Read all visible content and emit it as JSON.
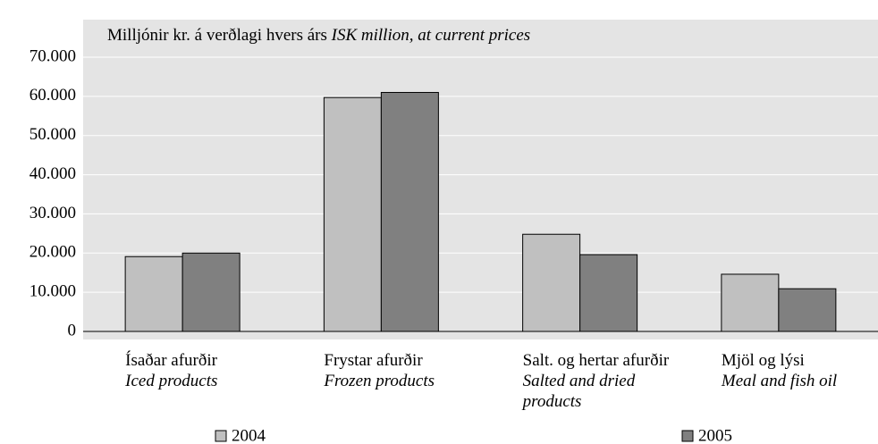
{
  "chart_data": {
    "type": "bar",
    "title": "Milljónir kr. á verðlagi hvers árs",
    "subtitle": "ISK million, at current prices",
    "categories": [
      "Ísaðar afurðir",
      "Frystar afurðir",
      "Salt. og hertar afurðir",
      "Mjöl og lýsi"
    ],
    "categories_en": [
      "Iced products",
      "Frozen products",
      "Salted and dried products",
      "Meal and fish oil"
    ],
    "series": [
      {
        "name": "2004",
        "color": "#c0c0c0",
        "values": [
          19100,
          59700,
          24800,
          14600
        ]
      },
      {
        "name": "2005",
        "color": "#808080",
        "values": [
          20000,
          61000,
          19600,
          10900
        ]
      }
    ],
    "ylim": [
      0,
      70000
    ],
    "yticks": [
      0,
      {
        "value": 10000,
        "label": "10.000"
      },
      {
        "value": 20000,
        "label": "20.000"
      },
      {
        "value": 30000,
        "label": "30.000"
      },
      {
        "value": 40000,
        "label": "40.000"
      },
      {
        "value": 50000,
        "label": "50.000"
      },
      {
        "value": 60000,
        "label": "60.000"
      },
      {
        "value": 70000,
        "label": "70.000"
      }
    ],
    "grid": true,
    "legend": "bottom"
  }
}
